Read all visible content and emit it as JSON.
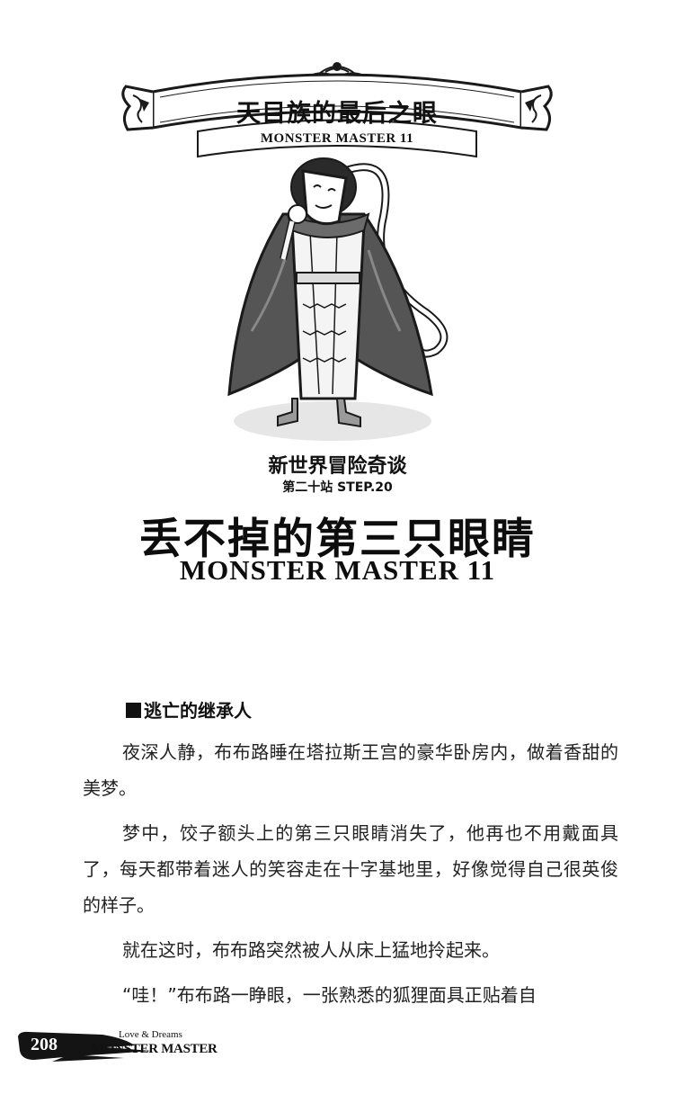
{
  "banner": {
    "title": "天目族的最后之眼",
    "subtitle": "MONSTER MASTER 11"
  },
  "heading": {
    "series": "新世界冒险奇谈",
    "station": "第二十站 STEP.20",
    "chapter_title": "丢不掉的第三只眼睛",
    "chapter_subtitle": "MONSTER MASTER 11"
  },
  "section": {
    "heading": "逃亡的继承人"
  },
  "paragraphs": [
    "夜深人静，布布路睡在塔拉斯王宫的豪华卧房内，做着香甜的美梦。",
    "梦中，饺子额头上的第三只眼睛消失了，他再也不用戴面具了，每天都带着迷人的笑容走在十字基地里，好像觉得自己很英俊的样子。",
    "就在这时，布布路突然被人从床上猛地拎起来。",
    "“哇！”布布路一睁眼，一张熟悉的狐狸面具正贴着自"
  ],
  "footer": {
    "page_number": "208",
    "small_text": "Love & Dreams",
    "brand": "MONSTER MASTER"
  },
  "illustration": {
    "subject": "masked character with cape",
    "cape_color": "#555555",
    "ink_color": "#1a1a1a"
  }
}
